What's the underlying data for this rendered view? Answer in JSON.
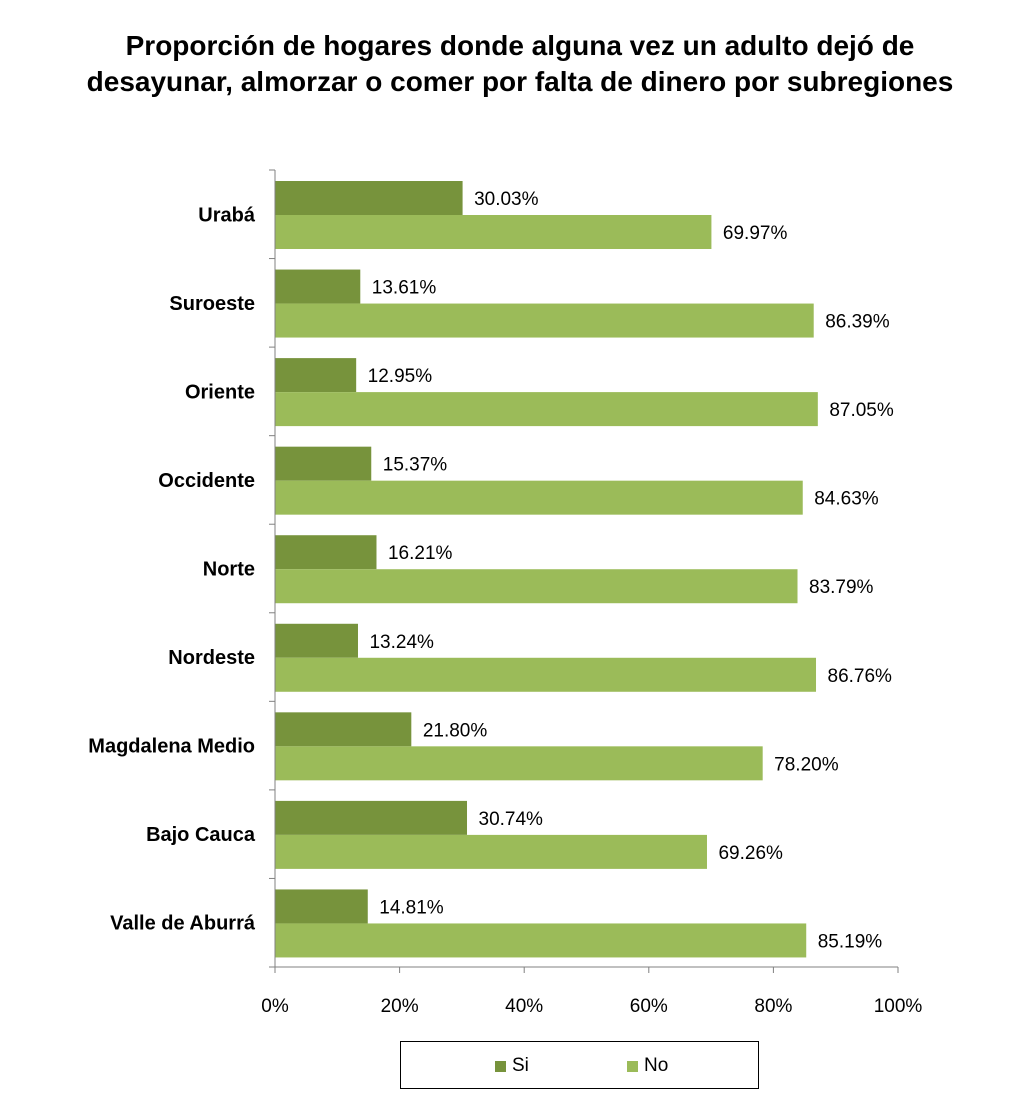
{
  "chart_data": {
    "type": "bar",
    "orientation": "horizontal",
    "title": "Proporción de hogares donde alguna vez un adulto dejó de desayunar, almorzar o comer por falta de dinero por subregiones",
    "categories": [
      "Urabá",
      "Suroeste",
      "Oriente",
      "Occidente",
      "Norte",
      "Nordeste",
      "Magdalena Medio",
      "Bajo Cauca",
      "Valle de Aburrá"
    ],
    "series": [
      {
        "name": "Si",
        "color": "#77933c",
        "values": [
          30.03,
          13.61,
          12.95,
          15.37,
          16.21,
          13.24,
          21.8,
          30.74,
          14.81
        ],
        "labels": [
          "30.03%",
          "13.61%",
          "12.95%",
          "15.37%",
          "16.21%",
          "13.24%",
          "21.80%",
          "30.74%",
          "14.81%"
        ]
      },
      {
        "name": "No",
        "color": "#9bbb59",
        "values": [
          69.97,
          86.39,
          87.05,
          84.63,
          83.79,
          86.76,
          78.2,
          69.26,
          85.19
        ],
        "labels": [
          "69.97%",
          "86.39%",
          "87.05%",
          "84.63%",
          "83.79%",
          "86.76%",
          "78.20%",
          "69.26%",
          "85.19%"
        ]
      }
    ],
    "xlim": [
      0,
      100
    ],
    "xticks": [
      "0%",
      "20%",
      "40%",
      "60%",
      "80%",
      "100%"
    ],
    "grid": false,
    "legend_position": "bottom"
  }
}
